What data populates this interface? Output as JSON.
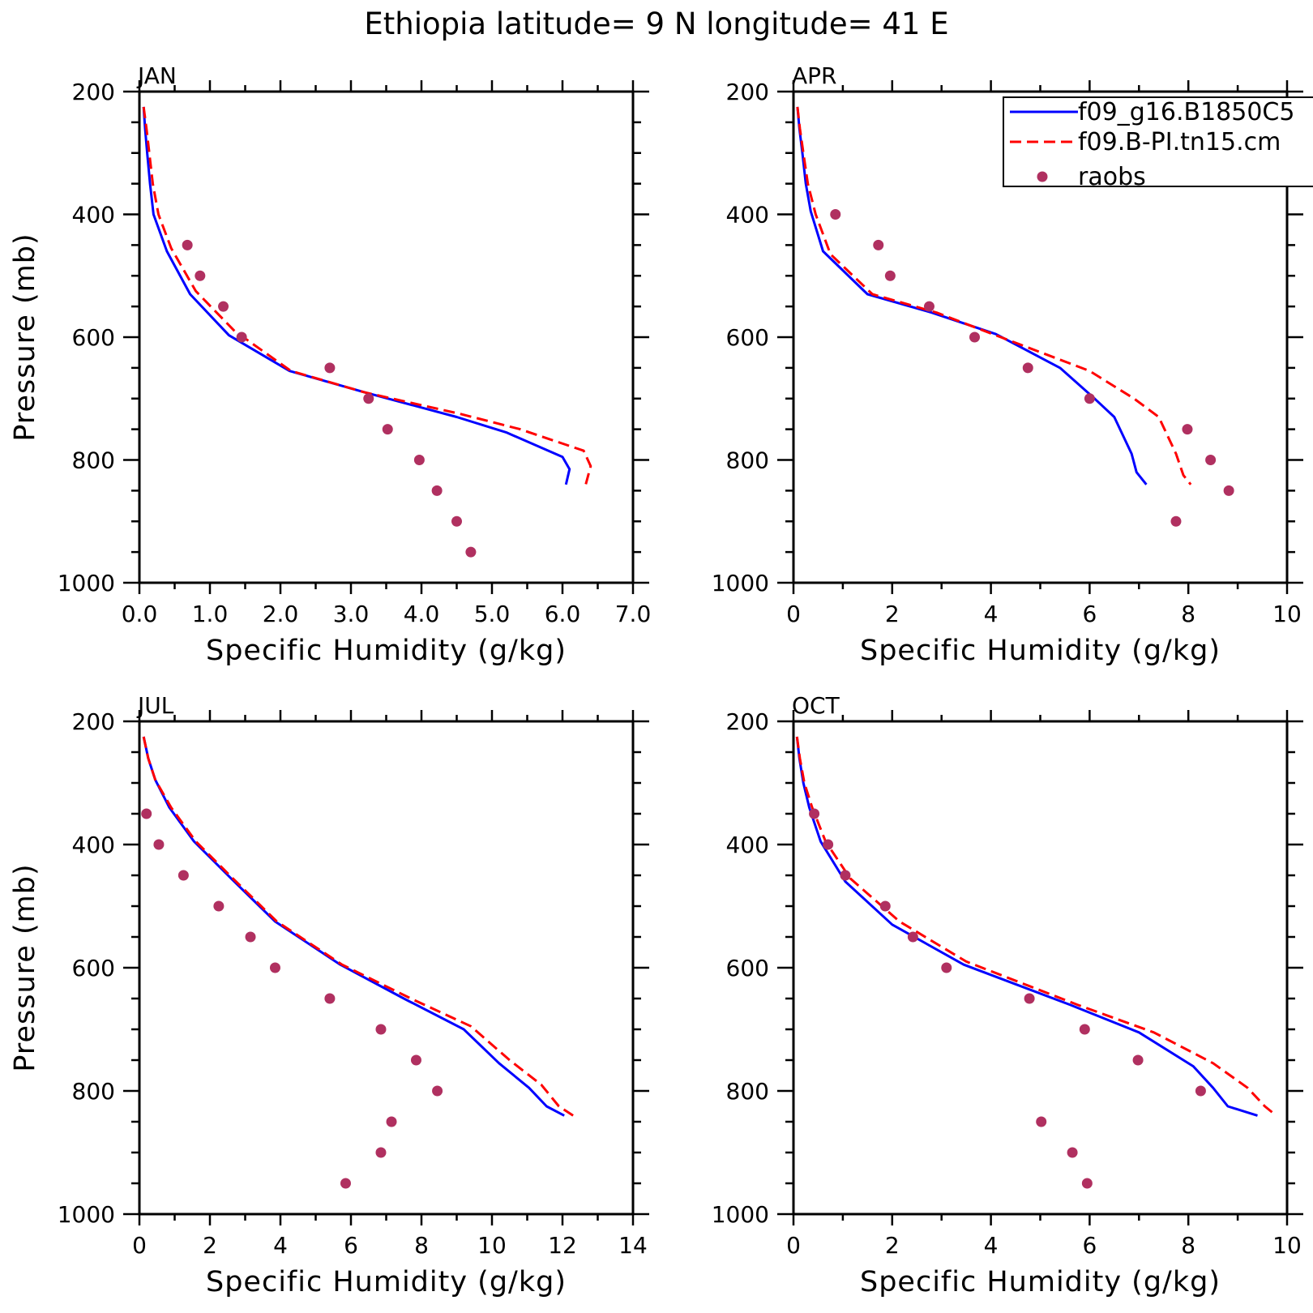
{
  "title": "Ethiopia  latitude= 9 N longitude= 41 E",
  "legend": [
    {
      "label": "f09_g16.B1850C5",
      "color": "#0000ff",
      "style": "solid"
    },
    {
      "label": "f09.B-PI.tn15.cm",
      "color": "#ff0000",
      "style": "dashed"
    },
    {
      "label": "raobs",
      "color": "#b03060",
      "style": "dots"
    }
  ],
  "chart_data": [
    {
      "type": "line",
      "panel": "JAN",
      "xlabel": "Specific Humidity (g/kg)",
      "ylabel": "Pressure (mb)",
      "xlim": [
        0,
        7
      ],
      "ylim": [
        1000,
        200
      ],
      "y_reversed": true,
      "xticks": [
        0,
        1,
        2,
        3,
        4,
        5,
        6,
        7
      ],
      "xtick_labels": [
        "0.0",
        "1.0",
        "2.0",
        "3.0",
        "4.0",
        "5.0",
        "6.0",
        "7.0"
      ],
      "yticks": [
        200,
        400,
        600,
        800,
        1000
      ],
      "ytick_labels": [
        "200",
        "400",
        "600",
        "800",
        "1000"
      ],
      "series": [
        {
          "name": "f09_g16.B1850C5",
          "color": "#0000ff",
          "style": "solid",
          "x": [
            0.06,
            0.08,
            0.11,
            0.15,
            0.2,
            0.39,
            0.72,
            1.27,
            2.13,
            3.2,
            4.5,
            5.2,
            6.0,
            6.1,
            6.05
          ],
          "y": [
            225,
            260,
            300,
            350,
            400,
            460,
            530,
            597,
            655,
            690,
            730,
            755,
            795,
            815,
            840
          ]
        },
        {
          "name": "f09.B-PI.tn15.cm",
          "color": "#ff0000",
          "style": "dashed",
          "x": [
            0.06,
            0.1,
            0.14,
            0.19,
            0.27,
            0.45,
            0.8,
            1.35,
            2.15,
            3.2,
            4.55,
            5.4,
            6.3,
            6.4,
            6.33
          ],
          "y": [
            225,
            260,
            300,
            350,
            400,
            455,
            525,
            590,
            655,
            690,
            725,
            750,
            785,
            810,
            840
          ]
        },
        {
          "name": "raobs",
          "color": "#b03060",
          "style": "dots",
          "x": [
            0.68,
            0.86,
            1.19,
            1.45,
            2.7,
            3.25,
            3.52,
            3.97,
            4.22,
            4.5,
            4.7
          ],
          "y": [
            450,
            500,
            550,
            600,
            650,
            700,
            750,
            800,
            850,
            900,
            950
          ]
        }
      ]
    },
    {
      "type": "line",
      "panel": "APR",
      "xlabel": "Specific Humidity (g/kg)",
      "ylabel": "",
      "xlim": [
        0,
        10
      ],
      "ylim": [
        1000,
        200
      ],
      "y_reversed": true,
      "xticks": [
        0,
        2,
        4,
        6,
        8,
        10
      ],
      "xtick_labels": [
        "0",
        "2",
        "4",
        "6",
        "8",
        "10"
      ],
      "yticks": [
        200,
        400,
        600,
        800,
        1000
      ],
      "ytick_labels": [
        "200",
        "400",
        "600",
        "800",
        "1000"
      ],
      "series": [
        {
          "name": "f09_g16.B1850C5",
          "color": "#0000ff",
          "style": "solid",
          "x": [
            0.08,
            0.12,
            0.18,
            0.25,
            0.35,
            0.6,
            1.5,
            2.8,
            4.1,
            5.4,
            6.1,
            6.5,
            6.85,
            6.95,
            7.15
          ],
          "y": [
            225,
            260,
            300,
            350,
            395,
            460,
            530,
            560,
            595,
            650,
            700,
            730,
            790,
            820,
            840
          ]
        },
        {
          "name": "f09.B-PI.tn15.cm",
          "color": "#ff0000",
          "style": "dashed",
          "x": [
            0.08,
            0.13,
            0.2,
            0.29,
            0.45,
            0.75,
            1.6,
            2.9,
            4.2,
            6.0,
            6.9,
            7.4,
            7.75,
            7.9,
            8.05
          ],
          "y": [
            225,
            260,
            300,
            350,
            400,
            465,
            530,
            560,
            600,
            655,
            700,
            730,
            790,
            825,
            840
          ]
        },
        {
          "name": "raobs",
          "color": "#b03060",
          "style": "dots",
          "x": [
            0.85,
            1.72,
            1.96,
            2.75,
            3.67,
            4.75,
            6.0,
            7.98,
            8.45,
            8.82,
            7.75
          ],
          "y": [
            400,
            450,
            500,
            550,
            600,
            650,
            700,
            750,
            800,
            850,
            900
          ]
        }
      ]
    },
    {
      "type": "line",
      "panel": "JUL",
      "xlabel": "Specific Humidity (g/kg)",
      "ylabel": "Pressure (mb)",
      "xlim": [
        0,
        14
      ],
      "ylim": [
        1000,
        200
      ],
      "y_reversed": true,
      "xticks": [
        0,
        2,
        4,
        6,
        8,
        10,
        12,
        14
      ],
      "xtick_labels": [
        "0",
        "2",
        "4",
        "6",
        "8",
        "10",
        "12",
        "14"
      ],
      "yticks": [
        200,
        400,
        600,
        800,
        1000
      ],
      "ytick_labels": [
        "200",
        "400",
        "600",
        "800",
        "1000"
      ],
      "series": [
        {
          "name": "f09_g16.B1850C5",
          "color": "#0000ff",
          "style": "solid",
          "x": [
            0.12,
            0.25,
            0.45,
            0.85,
            1.55,
            2.6,
            3.85,
            5.7,
            7.5,
            9.2,
            10.2,
            11.05,
            11.55,
            12.05
          ],
          "y": [
            225,
            260,
            295,
            340,
            395,
            455,
            525,
            595,
            650,
            700,
            755,
            795,
            825,
            840
          ]
        },
        {
          "name": "f09.B-PI.tn15.cm",
          "color": "#ff0000",
          "style": "dashed",
          "x": [
            0.12,
            0.25,
            0.45,
            0.9,
            1.6,
            2.65,
            3.9,
            5.75,
            7.7,
            9.4,
            10.5,
            11.4,
            11.9,
            12.3
          ],
          "y": [
            225,
            260,
            295,
            340,
            395,
            455,
            525,
            595,
            650,
            695,
            750,
            790,
            825,
            840
          ]
        },
        {
          "name": "raobs",
          "color": "#b03060",
          "style": "dots",
          "x": [
            0.2,
            0.55,
            1.25,
            2.25,
            3.15,
            3.85,
            5.4,
            6.85,
            7.85,
            8.45,
            7.15,
            6.85,
            5.85
          ],
          "y": [
            350,
            400,
            450,
            500,
            550,
            600,
            650,
            700,
            750,
            800,
            850,
            900,
            950
          ]
        }
      ]
    },
    {
      "type": "line",
      "panel": "OCT",
      "xlabel": "Specific Humidity (g/kg)",
      "ylabel": "",
      "xlim": [
        0,
        10
      ],
      "ylim": [
        1000,
        200
      ],
      "y_reversed": true,
      "xticks": [
        0,
        2,
        4,
        6,
        8,
        10
      ],
      "xtick_labels": [
        "0",
        "2",
        "4",
        "6",
        "8",
        "10"
      ],
      "yticks": [
        200,
        400,
        600,
        800,
        1000
      ],
      "ytick_labels": [
        "200",
        "400",
        "600",
        "800",
        "1000"
      ],
      "series": [
        {
          "name": "f09_g16.B1850C5",
          "color": "#0000ff",
          "style": "solid",
          "x": [
            0.07,
            0.12,
            0.2,
            0.32,
            0.55,
            1.05,
            2.0,
            3.45,
            5.6,
            7.0,
            8.1,
            8.5,
            8.8,
            9.4
          ],
          "y": [
            225,
            260,
            300,
            340,
            395,
            460,
            530,
            595,
            660,
            705,
            760,
            795,
            825,
            840
          ]
        },
        {
          "name": "f09.B-PI.tn15.cm",
          "color": "#ff0000",
          "style": "dashed",
          "x": [
            0.07,
            0.13,
            0.22,
            0.38,
            0.65,
            1.15,
            2.15,
            3.5,
            5.75,
            7.3,
            8.5,
            9.2,
            9.55,
            9.78
          ],
          "y": [
            225,
            260,
            300,
            340,
            395,
            455,
            525,
            590,
            660,
            705,
            755,
            795,
            825,
            840
          ]
        },
        {
          "name": "raobs",
          "color": "#b03060",
          "style": "dots",
          "x": [
            0.42,
            0.7,
            1.05,
            1.86,
            2.42,
            3.1,
            4.78,
            5.9,
            6.98,
            8.25,
            5.02,
            5.65,
            5.95
          ],
          "y": [
            350,
            400,
            450,
            500,
            550,
            600,
            650,
            700,
            750,
            800,
            850,
            900,
            950
          ]
        }
      ]
    }
  ]
}
